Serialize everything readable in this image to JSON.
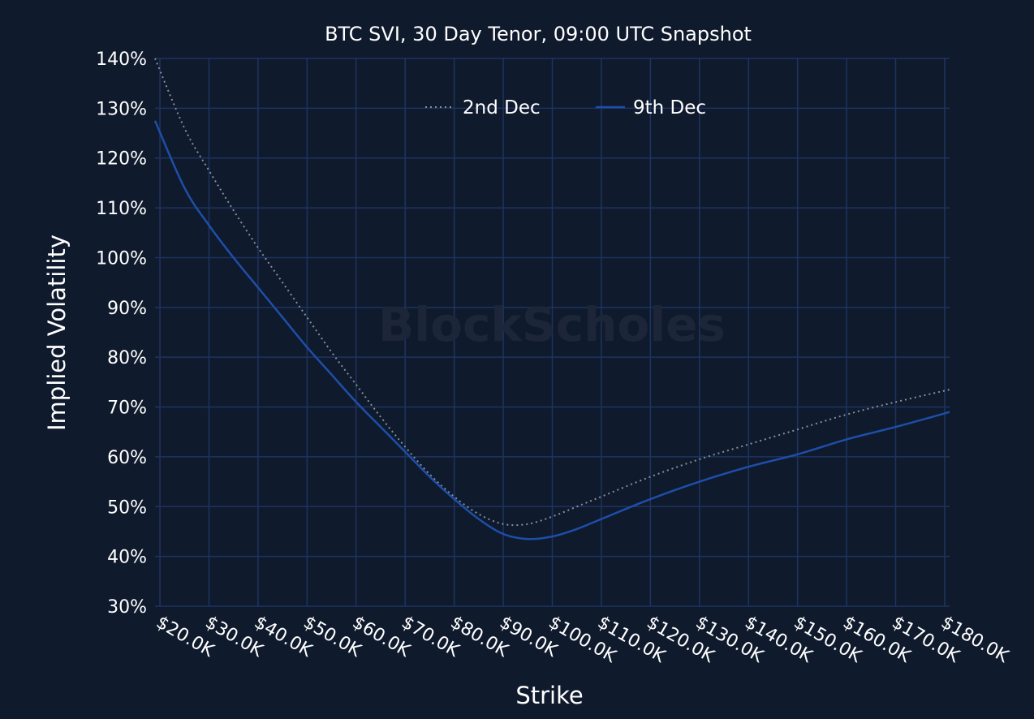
{
  "chart_data": {
    "type": "line",
    "title": "BTC SVI, 30 Day Tenor, 09:00 UTC Snapshot",
    "xlabel": "Strike",
    "ylabel": "Implied Volatility",
    "watermark": "BlockScholes",
    "xlim": [
      19000,
      181000
    ],
    "ylim": [
      30,
      140
    ],
    "x_ticks": [
      20000,
      30000,
      40000,
      50000,
      60000,
      70000,
      80000,
      90000,
      100000,
      110000,
      120000,
      130000,
      140000,
      150000,
      160000,
      170000,
      180000
    ],
    "x_tick_labels": [
      "$20.0K",
      "$30.0K",
      "$40.0K",
      "$50.0K",
      "$60.0K",
      "$70.0K",
      "$80.0K",
      "$90.0K",
      "$100.0K",
      "$110.0K",
      "$120.0K",
      "$130.0K",
      "$140.0K",
      "$150.0K",
      "$160.0K",
      "$170.0K",
      "$180.0K"
    ],
    "y_ticks": [
      30,
      40,
      50,
      60,
      70,
      80,
      90,
      100,
      110,
      120,
      130,
      140
    ],
    "y_tick_labels": [
      "30%",
      "40%",
      "50%",
      "60%",
      "70%",
      "80%",
      "90%",
      "100%",
      "110%",
      "120%",
      "130%",
      "140%"
    ],
    "grid": true,
    "legend_position": "top-center",
    "series": [
      {
        "name": "2nd Dec",
        "style": "dotted",
        "color": "#8a8f99",
        "x": [
          19000,
          25000,
          30000,
          35000,
          40000,
          45000,
          50000,
          55000,
          60000,
          65000,
          70000,
          75000,
          80000,
          85000,
          90000,
          95000,
          100000,
          105000,
          110000,
          120000,
          130000,
          140000,
          150000,
          160000,
          170000,
          181000
        ],
        "y": [
          140,
          126,
          117.5,
          109.5,
          102,
          95,
          88,
          81,
          74.5,
          68,
          62,
          56.5,
          52,
          48.5,
          46.5,
          46.5,
          48,
          50,
          52,
          56,
          59.5,
          62.5,
          65.5,
          68.5,
          71,
          73.5
        ]
      },
      {
        "name": "9th Dec",
        "style": "solid",
        "color": "#1e4ea8",
        "x": [
          19000,
          25000,
          30000,
          35000,
          40000,
          45000,
          50000,
          55000,
          60000,
          65000,
          70000,
          75000,
          80000,
          85000,
          90000,
          95000,
          100000,
          105000,
          110000,
          120000,
          130000,
          140000,
          150000,
          160000,
          170000,
          181000
        ],
        "y": [
          127.5,
          114,
          106.5,
          100,
          94,
          88,
          82,
          76.5,
          71,
          66,
          61,
          56,
          51.5,
          47.5,
          44.5,
          43.5,
          44,
          45.5,
          47.5,
          51.5,
          55,
          58,
          60.5,
          63.5,
          66,
          69
        ]
      }
    ]
  }
}
